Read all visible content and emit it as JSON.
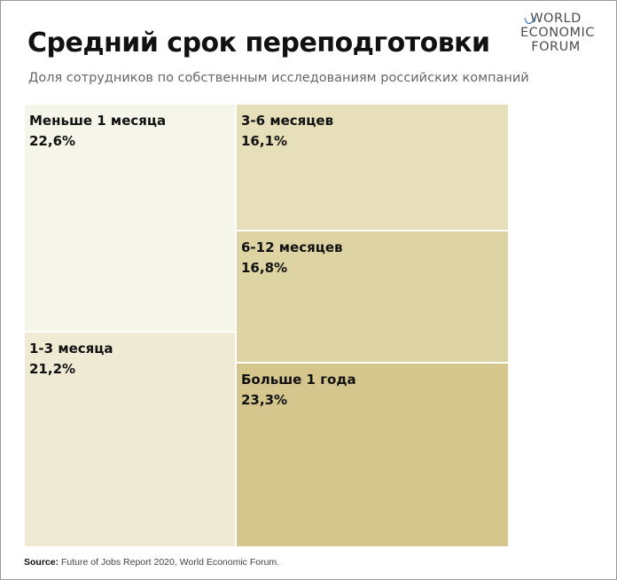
{
  "header": {
    "title": "Средний срок переподготовки",
    "subtitle": "Доля сотрудников по собственным исследованиям российских компаний"
  },
  "logo": {
    "line1": "WORLD",
    "line2": "ECONOMIC",
    "line3": "FORUM"
  },
  "footer": {
    "source_label": "Source:",
    "source_text": "Future of Jobs Report 2020, World Economic Forum."
  },
  "chart_data": {
    "type": "treemap",
    "title": "Средний срок переподготовки",
    "subtitle": "Доля сотрудников по собственным исследованиям российских компаний",
    "unit": "%",
    "items": [
      {
        "label": "Меньше 1 месяца",
        "value": 22.6,
        "value_text": "22,6%",
        "color": "#f6f5ea"
      },
      {
        "label": "1-3 месяца",
        "value": 21.2,
        "value_text": "21,2%",
        "color": "#eeead4"
      },
      {
        "label": "3-6 месяцев",
        "value": 16.1,
        "value_text": "16,1%",
        "color": "#e6dfba"
      },
      {
        "label": "6-12 месяцев",
        "value": 16.8,
        "value_text": "16,8%",
        "color": "#ddd3a3"
      },
      {
        "label": "Больше 1 года",
        "value": 23.3,
        "value_text": "23,3%",
        "color": "#d5c68d"
      }
    ],
    "columns": [
      [
        0,
        1
      ],
      [
        2,
        3,
        4
      ]
    ]
  }
}
